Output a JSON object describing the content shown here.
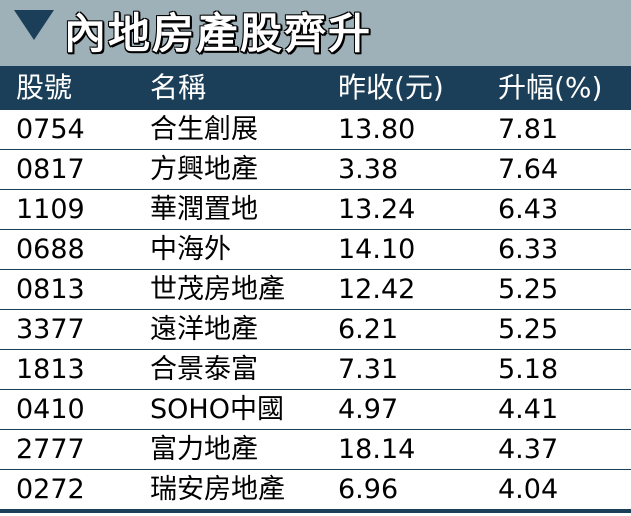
{
  "title": "內地房產股齊升",
  "columns": [
    "股號",
    "名稱",
    "昨收(元)",
    "升幅(%)"
  ],
  "rows": [
    {
      "code": "0754",
      "name": "合生創展",
      "close": "13.80",
      "gain": "7.81"
    },
    {
      "code": "0817",
      "name": "方興地產",
      "close": "3.38",
      "gain": "7.64"
    },
    {
      "code": "1109",
      "name": "華潤置地",
      "close": "13.24",
      "gain": "6.43"
    },
    {
      "code": "0688",
      "name": "中海外",
      "close": "14.10",
      "gain": "6.33"
    },
    {
      "code": "0813",
      "name": "世茂房地產",
      "close": "12.42",
      "gain": "5.25"
    },
    {
      "code": "3377",
      "name": "遠洋地產",
      "close": "6.21",
      "gain": "5.25"
    },
    {
      "code": "1813",
      "name": "合景泰富",
      "close": "7.31",
      "gain": "5.18"
    },
    {
      "code": "0410",
      "name": "SOHO中國",
      "close": "4.97",
      "gain": "4.41"
    },
    {
      "code": "2777",
      "name": "富力地產",
      "close": "18.14",
      "gain": "4.37"
    },
    {
      "code": "0272",
      "name": "瑞安房地產",
      "close": "6.96",
      "gain": "4.04"
    }
  ],
  "colors": {
    "title_bg": "#9eb0b8",
    "header_bg": "#1b3f58",
    "title_text": "#ffffff"
  }
}
